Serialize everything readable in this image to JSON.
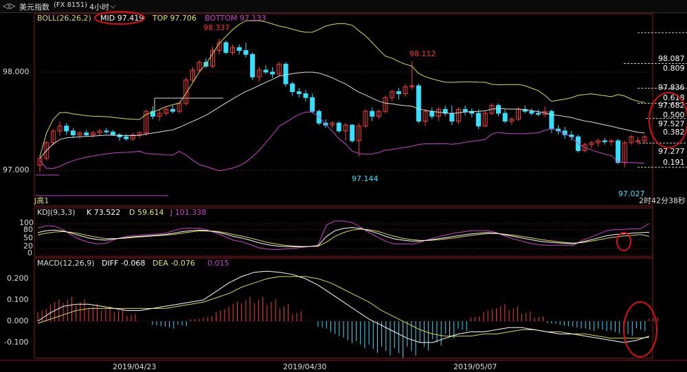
{
  "titlebar": {
    "nav_left": "◁",
    "nav_right": "▷",
    "symbol": "美元指数",
    "code": "(FX 8151)",
    "period": "4小时",
    "period_caret": "⌵"
  },
  "main_legend": {
    "label": "BOLL(26,26,2)",
    "mid": "MID 97.419",
    "top": "TOP 97.706",
    "bottom": "BOTTOM 97.133"
  },
  "kdj_legend": {
    "label": "KDJ(9,3,3)",
    "k": "K 73.522",
    "d": "D 59.614",
    "j": "J 101.338"
  },
  "macd_legend": {
    "label": "MACD(12,26,9)",
    "diff": "DIFF -0.068",
    "dea": "DEA -0.076",
    "macd": "0.015"
  },
  "annotations": {
    "high1": "98.337",
    "high2": "98.112",
    "low1": "97.144",
    "low2": "97.027",
    "countdown": "2时42分38秒",
    "left_label": "J高1"
  },
  "fib_levels": [
    {
      "price": "98.087",
      "ratio": "0.809"
    },
    {
      "price": "97.836",
      "ratio": "0.618"
    },
    {
      "price": "97.682",
      "ratio": "0.500"
    },
    {
      "price": "97.527",
      "ratio": "0.382"
    },
    {
      "price": "97.277",
      "ratio": "0.191"
    }
  ],
  "chart_data": {
    "type": "candlestick",
    "price_axis": {
      "ticks": [
        "98.000",
        "97.000"
      ],
      "ylim": [
        96.98,
        98.6
      ]
    },
    "kdj_axis": {
      "ticks": [
        "100",
        "80",
        "50",
        "20",
        "0"
      ]
    },
    "macd_axis": {
      "ticks": [
        "0.200",
        "0.100",
        "0.000",
        "-0.100"
      ],
      "ylim": [
        -0.16,
        0.25
      ]
    },
    "x_labels": [
      "2019/04/23",
      "2019/04/30",
      "2019/05/07"
    ],
    "candles": [
      [
        97.05,
        97.15,
        96.98,
        97.12
      ],
      [
        97.12,
        97.3,
        97.1,
        97.28
      ],
      [
        97.28,
        97.42,
        97.25,
        97.4
      ],
      [
        97.4,
        97.5,
        97.35,
        97.45
      ],
      [
        97.45,
        97.48,
        97.36,
        97.4
      ],
      [
        97.4,
        97.43,
        97.33,
        97.36
      ],
      [
        97.36,
        97.4,
        97.32,
        97.38
      ],
      [
        97.38,
        97.41,
        97.34,
        97.36
      ],
      [
        97.36,
        97.4,
        97.33,
        97.38
      ],
      [
        97.38,
        97.42,
        97.35,
        97.4
      ],
      [
        97.4,
        97.43,
        97.37,
        97.39
      ],
      [
        97.39,
        97.41,
        97.35,
        97.36
      ],
      [
        97.36,
        97.38,
        97.3,
        97.34
      ],
      [
        97.34,
        97.37,
        97.3,
        97.32
      ],
      [
        97.32,
        97.38,
        97.3,
        97.36
      ],
      [
        97.36,
        97.4,
        97.33,
        97.38
      ],
      [
        97.38,
        97.62,
        97.35,
        97.6
      ],
      [
        97.6,
        97.65,
        97.52,
        97.55
      ],
      [
        97.55,
        97.62,
        97.5,
        97.58
      ],
      [
        97.58,
        97.64,
        97.56,
        97.62
      ],
      [
        97.62,
        97.66,
        97.58,
        97.6
      ],
      [
        97.6,
        97.7,
        97.58,
        97.68
      ],
      [
        97.68,
        97.95,
        97.66,
        97.92
      ],
      [
        97.92,
        98.05,
        97.9,
        98.02
      ],
      [
        98.02,
        98.12,
        98.0,
        98.1
      ],
      [
        98.1,
        98.14,
        98.04,
        98.06
      ],
      [
        98.06,
        98.26,
        98.04,
        98.22
      ],
      [
        98.22,
        98.34,
        98.18,
        98.3
      ],
      [
        98.3,
        98.32,
        98.18,
        98.2
      ],
      [
        98.2,
        98.28,
        98.17,
        98.25
      ],
      [
        98.25,
        98.28,
        98.18,
        98.22
      ],
      [
        98.22,
        98.3,
        98.15,
        98.18
      ],
      [
        98.18,
        98.2,
        97.92,
        97.95
      ],
      [
        97.95,
        98.05,
        97.9,
        98.02
      ],
      [
        98.02,
        98.07,
        97.98,
        98.0
      ],
      [
        98.0,
        98.05,
        97.94,
        97.98
      ],
      [
        97.98,
        98.1,
        97.96,
        98.08
      ],
      [
        98.08,
        98.1,
        97.85,
        97.88
      ],
      [
        97.88,
        97.9,
        97.76,
        97.8
      ],
      [
        97.8,
        97.84,
        97.74,
        97.78
      ],
      [
        97.78,
        97.82,
        97.7,
        97.74
      ],
      [
        97.74,
        97.78,
        97.58,
        97.6
      ],
      [
        97.6,
        97.62,
        97.46,
        97.48
      ],
      [
        97.48,
        97.52,
        97.43,
        97.46
      ],
      [
        97.46,
        97.5,
        97.43,
        97.48
      ],
      [
        97.48,
        97.5,
        97.38,
        97.4
      ],
      [
        97.4,
        97.48,
        97.3,
        97.46
      ],
      [
        97.46,
        97.47,
        97.28,
        97.3
      ],
      [
        97.3,
        97.48,
        97.14,
        97.45
      ],
      [
        97.45,
        97.62,
        97.43,
        97.6
      ],
      [
        97.6,
        97.64,
        97.5,
        97.55
      ],
      [
        97.55,
        97.62,
        97.52,
        97.6
      ],
      [
        97.6,
        97.76,
        97.58,
        97.74
      ],
      [
        97.74,
        97.82,
        97.7,
        97.8
      ],
      [
        97.8,
        97.84,
        97.72,
        97.78
      ],
      [
        97.78,
        97.88,
        97.75,
        97.85
      ],
      [
        97.85,
        98.11,
        97.82,
        97.86
      ],
      [
        97.86,
        97.88,
        97.48,
        97.5
      ],
      [
        97.5,
        97.62,
        97.45,
        97.6
      ],
      [
        97.6,
        97.64,
        97.52,
        97.55
      ],
      [
        97.55,
        97.64,
        97.5,
        97.62
      ],
      [
        97.62,
        97.66,
        97.55,
        97.58
      ],
      [
        97.58,
        97.66,
        97.46,
        97.5
      ],
      [
        97.5,
        97.64,
        97.47,
        97.62
      ],
      [
        97.62,
        97.66,
        97.56,
        97.6
      ],
      [
        97.6,
        97.63,
        97.54,
        97.58
      ],
      [
        97.58,
        97.62,
        97.42,
        97.45
      ],
      [
        97.45,
        97.6,
        97.44,
        97.58
      ],
      [
        97.58,
        97.68,
        97.56,
        97.66
      ],
      [
        97.66,
        97.68,
        97.55,
        97.58
      ],
      [
        97.58,
        97.62,
        97.48,
        97.5
      ],
      [
        97.5,
        97.54,
        97.46,
        97.52
      ],
      [
        97.52,
        97.64,
        97.5,
        97.62
      ],
      [
        97.62,
        97.66,
        97.58,
        97.6
      ],
      [
        97.6,
        97.63,
        97.56,
        97.58
      ],
      [
        97.58,
        97.62,
        97.55,
        97.57
      ],
      [
        97.57,
        97.65,
        97.54,
        97.6
      ],
      [
        97.6,
        97.62,
        97.38,
        97.42
      ],
      [
        97.42,
        97.46,
        97.36,
        97.4
      ],
      [
        97.4,
        97.44,
        97.32,
        97.36
      ],
      [
        97.36,
        97.4,
        97.3,
        97.34
      ],
      [
        97.34,
        97.36,
        97.18,
        97.2
      ],
      [
        97.2,
        97.28,
        97.18,
        97.26
      ],
      [
        97.26,
        97.3,
        97.22,
        97.28
      ],
      [
        97.28,
        97.32,
        97.24,
        97.3
      ],
      [
        97.3,
        97.33,
        97.26,
        97.29
      ],
      [
        97.29,
        97.32,
        97.25,
        97.3
      ],
      [
        97.3,
        97.32,
        97.06,
        97.08
      ],
      [
        97.08,
        97.3,
        97.03,
        97.28
      ],
      [
        97.28,
        97.36,
        97.26,
        97.34
      ],
      [
        97.3,
        97.34,
        97.26,
        97.3
      ],
      [
        97.3,
        97.36,
        97.27,
        97.34
      ]
    ],
    "kdj": {
      "k": [
        72,
        78,
        80,
        77,
        70,
        62,
        55,
        50,
        48,
        52,
        55,
        58,
        60,
        62,
        64,
        66,
        70,
        75,
        78,
        80,
        78,
        74,
        68,
        60,
        55,
        48,
        40,
        34,
        30,
        28,
        27,
        27,
        28,
        30,
        60,
        78,
        85,
        88,
        85,
        78,
        70,
        60,
        52,
        48,
        45,
        45,
        48,
        52,
        56,
        60,
        64,
        68,
        70,
        72,
        70,
        65,
        60,
        55,
        50,
        45,
        42,
        40,
        38,
        36,
        42,
        48,
        55,
        62,
        66,
        68,
        70,
        72,
        73
      ],
      "d": [
        65,
        70,
        74,
        75,
        73,
        68,
        62,
        57,
        53,
        53,
        54,
        56,
        58,
        60,
        62,
        64,
        66,
        70,
        74,
        77,
        77,
        76,
        72,
        66,
        61,
        55,
        48,
        41,
        36,
        32,
        30,
        28,
        28,
        29,
        42,
        60,
        72,
        80,
        83,
        81,
        76,
        68,
        60,
        54,
        50,
        47,
        47,
        49,
        52,
        55,
        59,
        63,
        66,
        69,
        69,
        67,
        64,
        60,
        56,
        51,
        47,
        44,
        41,
        39,
        40,
        44,
        49,
        54,
        58,
        61,
        63,
        66,
        60
      ],
      "j": [
        86,
        94,
        92,
        81,
        64,
        50,
        41,
        36,
        38,
        50,
        57,
        62,
        64,
        66,
        68,
        70,
        78,
        85,
        86,
        86,
        80,
        70,
        60,
        48,
        43,
        34,
        24,
        20,
        18,
        20,
        21,
        25,
        28,
        32,
        96,
        114,
        111,
        104,
        89,
        72,
        58,
        44,
        36,
        36,
        35,
        41,
        50,
        58,
        64,
        70,
        74,
        78,
        78,
        78,
        72,
        61,
        52,
        45,
        38,
        33,
        32,
        32,
        32,
        30,
        46,
        56,
        67,
        78,
        82,
        82,
        84,
        84,
        101
      ]
    },
    "macd": {
      "diff": [
        0.0,
        0.04,
        0.07,
        0.08,
        0.08,
        0.07,
        0.06,
        0.05,
        0.05,
        0.06,
        0.07,
        0.08,
        0.09,
        0.1,
        0.14,
        0.18,
        0.21,
        0.23,
        0.235,
        0.23,
        0.22,
        0.2,
        0.17,
        0.13,
        0.09,
        0.05,
        0.01,
        -0.02,
        -0.05,
        -0.08,
        -0.1,
        -0.1,
        -0.08,
        -0.06,
        -0.05,
        -0.05,
        -0.04,
        -0.03,
        -0.03,
        -0.04,
        -0.05,
        -0.06,
        -0.06,
        -0.07,
        -0.08,
        -0.09,
        -0.1,
        -0.09,
        -0.07
      ],
      "dea": [
        -0.01,
        0.01,
        0.03,
        0.05,
        0.06,
        0.06,
        0.06,
        0.06,
        0.06,
        0.06,
        0.06,
        0.07,
        0.08,
        0.09,
        0.11,
        0.13,
        0.16,
        0.18,
        0.2,
        0.21,
        0.21,
        0.21,
        0.2,
        0.18,
        0.15,
        0.12,
        0.09,
        0.05,
        0.02,
        -0.01,
        -0.04,
        -0.06,
        -0.07,
        -0.07,
        -0.07,
        -0.06,
        -0.06,
        -0.05,
        -0.04,
        -0.04,
        -0.05,
        -0.05,
        -0.06,
        -0.06,
        -0.07,
        -0.08,
        -0.08,
        -0.08,
        -0.076
      ],
      "hist": [
        0.05,
        0.09,
        0.1,
        0.09,
        0.07,
        0.06,
        0.05,
        0.03,
        0.0,
        -0.02,
        -0.03,
        -0.02,
        0.01,
        0.02,
        0.05,
        0.08,
        0.1,
        0.1,
        0.09,
        0.07,
        0.04,
        0.0,
        -0.03,
        -0.06,
        -0.09,
        -0.11,
        -0.13,
        -0.14,
        -0.15,
        -0.14,
        -0.12,
        -0.1,
        -0.07,
        -0.04,
        0.02,
        0.05,
        0.07,
        0.06,
        0.04,
        0.02,
        -0.01,
        -0.02,
        -0.03,
        -0.04,
        -0.04,
        -0.05,
        -0.06,
        -0.04,
        0.015
      ]
    }
  }
}
